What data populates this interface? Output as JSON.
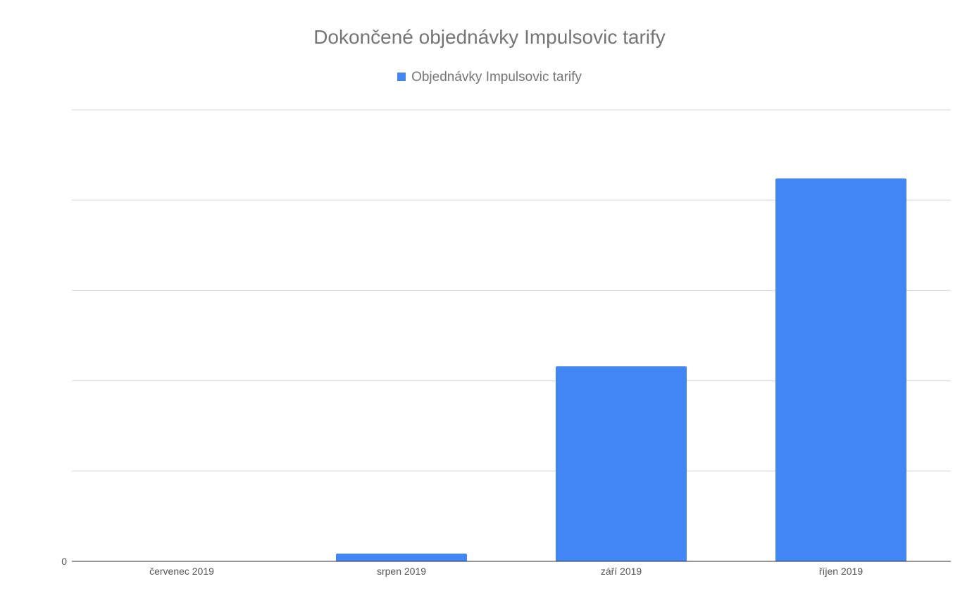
{
  "chart_data": {
    "type": "bar",
    "title": "Dokončené objednávky Impulsovic tarify",
    "xlabel": "",
    "ylabel": "",
    "categories": [
      "červenec 2019",
      "srpen 2019",
      "září 2019",
      "říjen 2019"
    ],
    "series": [
      {
        "name": "Objednávky Impulsovic tarify",
        "values": [
          0,
          0.43,
          10.8,
          21.2
        ]
      }
    ],
    "ylim": [
      0,
      25
    ],
    "y_tick_labels": [
      "0"
    ],
    "grid": true,
    "legend_position": "top-center",
    "colors": {
      "series": "#4285f4",
      "grid": "#d9d9d9",
      "axis": "#333333",
      "text": "#757575",
      "tick_text": "#555555"
    }
  }
}
